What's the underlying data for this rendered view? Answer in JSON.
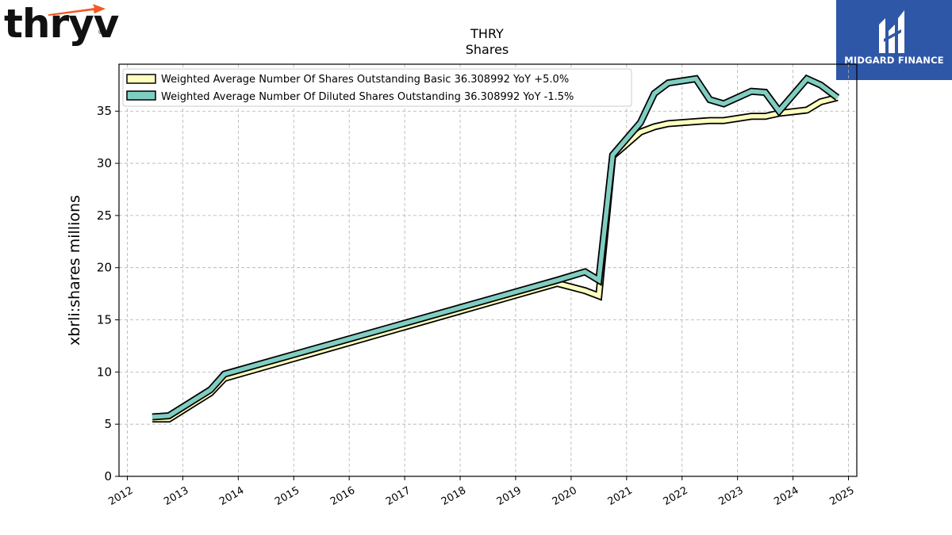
{
  "brand": {
    "name": "thryv",
    "mark": "®",
    "arrow_color": "#f05a22"
  },
  "partner": {
    "name": "MIDGARD FINANCE",
    "bg_color": "#2f57a8"
  },
  "chart_data": {
    "type": "line",
    "title": "THRY",
    "subtitle": "Shares",
    "xlabel": "",
    "ylabel": "xbrli:shares millions",
    "xlim": [
      2011.85,
      2025.15
    ],
    "ylim": [
      0,
      39.5
    ],
    "yticks": [
      0,
      5,
      10,
      15,
      20,
      25,
      30,
      35
    ],
    "xticks": [
      2012,
      2013,
      2014,
      2015,
      2016,
      2017,
      2018,
      2019,
      2020,
      2021,
      2022,
      2023,
      2024,
      2025
    ],
    "grid": true,
    "legend_position": "top-left",
    "series": [
      {
        "name": "Weighted Average Number Of Shares Outstanding Basic",
        "legend_label": "Weighted Average Number Of Shares Outstanding Basic  36.308992 YoY +5.0%",
        "color": "#ffffbf",
        "x": [
          2012.45,
          2012.75,
          2013.5,
          2013.75,
          2019.75,
          2020.25,
          2020.5,
          2020.75,
          2021.25,
          2021.5,
          2021.75,
          2022.25,
          2022.5,
          2022.75,
          2023.25,
          2023.5,
          2023.75,
          2024.25,
          2024.5,
          2024.8
        ],
        "y": [
          5.5,
          5.5,
          8.0,
          9.4,
          18.5,
          17.8,
          17.3,
          30.7,
          33.0,
          33.5,
          33.8,
          34.0,
          34.1,
          34.1,
          34.5,
          34.5,
          34.8,
          35.1,
          35.9,
          36.3
        ]
      },
      {
        "name": "Weighted Average Number Of Diluted Shares Outstanding",
        "legend_label": "Weighted Average Number Of Diluted Shares Outstanding  36.308992 YoY -1.5%",
        "color": "#80cdc1",
        "x": [
          2012.45,
          2012.75,
          2013.5,
          2013.75,
          2019.75,
          2020.25,
          2020.5,
          2020.75,
          2021.25,
          2021.5,
          2021.75,
          2022.25,
          2022.5,
          2022.75,
          2023.25,
          2023.5,
          2023.75,
          2024.25,
          2024.5,
          2024.8
        ],
        "y": [
          5.7,
          5.8,
          8.3,
          9.8,
          18.8,
          19.6,
          18.8,
          30.8,
          33.9,
          36.7,
          37.7,
          38.1,
          36.1,
          35.7,
          36.9,
          36.8,
          35.0,
          38.1,
          37.5,
          36.3
        ]
      }
    ]
  }
}
